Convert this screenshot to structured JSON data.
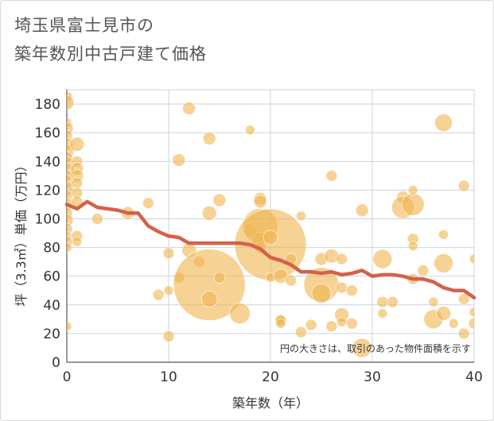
{
  "chart_data": {
    "type": "scatter",
    "title_lines": [
      "埼玉県富士見市の",
      "築年数別中古戸建て価格"
    ],
    "xlabel": "築年数（年）",
    "ylabel": "坪（3.3㎡）単価（万円）",
    "xlim": [
      0,
      40
    ],
    "ylim": [
      0,
      190
    ],
    "x_ticks": [
      0,
      10,
      20,
      30,
      40
    ],
    "y_ticks": [
      0,
      20,
      40,
      60,
      80,
      100,
      120,
      140,
      160,
      180
    ],
    "grid": true,
    "note": "円の大きさは、取引のあった物件面積を示す",
    "colors": {
      "bubble": "#f0b44e",
      "line": "#d4614a",
      "grid": "#c8d4dc"
    },
    "bubbles": [
      {
        "x": 0,
        "y": 185,
        "r": 7
      },
      {
        "x": 0,
        "y": 181,
        "r": 9
      },
      {
        "x": 0,
        "y": 167,
        "r": 6
      },
      {
        "x": 0,
        "y": 163,
        "r": 8
      },
      {
        "x": 0,
        "y": 158,
        "r": 7
      },
      {
        "x": 0,
        "y": 152,
        "r": 8
      },
      {
        "x": 0,
        "y": 147,
        "r": 9
      },
      {
        "x": 0,
        "y": 143,
        "r": 7
      },
      {
        "x": 0,
        "y": 139,
        "r": 8
      },
      {
        "x": 0,
        "y": 134,
        "r": 9
      },
      {
        "x": 0,
        "y": 130,
        "r": 7
      },
      {
        "x": 0,
        "y": 126,
        "r": 8
      },
      {
        "x": 0,
        "y": 121,
        "r": 9
      },
      {
        "x": 0,
        "y": 116,
        "r": 7
      },
      {
        "x": 0,
        "y": 110,
        "r": 8
      },
      {
        "x": 0,
        "y": 104,
        "r": 7
      },
      {
        "x": 0,
        "y": 99,
        "r": 8
      },
      {
        "x": 0,
        "y": 93,
        "r": 7
      },
      {
        "x": 0,
        "y": 88,
        "r": 6
      },
      {
        "x": 0,
        "y": 84,
        "r": 7
      },
      {
        "x": 0,
        "y": 80,
        "r": 6
      },
      {
        "x": 0,
        "y": 25,
        "r": 6
      },
      {
        "x": 1,
        "y": 152,
        "r": 9
      },
      {
        "x": 1,
        "y": 140,
        "r": 7
      },
      {
        "x": 1,
        "y": 135,
        "r": 8
      },
      {
        "x": 1,
        "y": 130,
        "r": 8
      },
      {
        "x": 1,
        "y": 125,
        "r": 7
      },
      {
        "x": 1,
        "y": 118,
        "r": 7
      },
      {
        "x": 1,
        "y": 112,
        "r": 7
      },
      {
        "x": 1,
        "y": 88,
        "r": 7
      },
      {
        "x": 1,
        "y": 84,
        "r": 6
      },
      {
        "x": 3,
        "y": 100,
        "r": 7
      },
      {
        "x": 6,
        "y": 104,
        "r": 8
      },
      {
        "x": 8,
        "y": 111,
        "r": 7
      },
      {
        "x": 9,
        "y": 47,
        "r": 7
      },
      {
        "x": 10,
        "y": 50,
        "r": 6
      },
      {
        "x": 10,
        "y": 76,
        "r": 7
      },
      {
        "x": 10,
        "y": 18,
        "r": 7
      },
      {
        "x": 11,
        "y": 141,
        "r": 8
      },
      {
        "x": 11,
        "y": 59,
        "r": 7
      },
      {
        "x": 12,
        "y": 177,
        "r": 8
      },
      {
        "x": 12,
        "y": 78,
        "r": 9
      },
      {
        "x": 13,
        "y": 70,
        "r": 7
      },
      {
        "x": 14,
        "y": 156,
        "r": 8
      },
      {
        "x": 14,
        "y": 104,
        "r": 9
      },
      {
        "x": 14,
        "y": 54,
        "r": 45
      },
      {
        "x": 14,
        "y": 44,
        "r": 10
      },
      {
        "x": 15,
        "y": 113,
        "r": 8
      },
      {
        "x": 15,
        "y": 59,
        "r": 7
      },
      {
        "x": 17,
        "y": 34,
        "r": 13
      },
      {
        "x": 18,
        "y": 162,
        "r": 6
      },
      {
        "x": 18,
        "y": 92,
        "r": 8
      },
      {
        "x": 19,
        "y": 114,
        "r": 8
      },
      {
        "x": 19,
        "y": 112,
        "r": 8
      },
      {
        "x": 19,
        "y": 95,
        "r": 22
      },
      {
        "x": 19,
        "y": 85,
        "r": 10
      },
      {
        "x": 19,
        "y": 80,
        "r": 7
      },
      {
        "x": 20,
        "y": 82,
        "r": 45
      },
      {
        "x": 20,
        "y": 87,
        "r": 9
      },
      {
        "x": 20,
        "y": 59,
        "r": 6
      },
      {
        "x": 21,
        "y": 60,
        "r": 9
      },
      {
        "x": 21,
        "y": 30,
        "r": 6
      },
      {
        "x": 21,
        "y": 29,
        "r": 7
      },
      {
        "x": 21,
        "y": 27,
        "r": 6
      },
      {
        "x": 22,
        "y": 72,
        "r": 7
      },
      {
        "x": 22,
        "y": 57,
        "r": 7
      },
      {
        "x": 23,
        "y": 102,
        "r": 6
      },
      {
        "x": 23,
        "y": 21,
        "r": 7
      },
      {
        "x": 24,
        "y": 26,
        "r": 7
      },
      {
        "x": 25,
        "y": 72,
        "r": 8
      },
      {
        "x": 25,
        "y": 54,
        "r": 22
      },
      {
        "x": 25,
        "y": 48,
        "r": 12
      },
      {
        "x": 26,
        "y": 130,
        "r": 7
      },
      {
        "x": 26,
        "y": 74,
        "r": 9
      },
      {
        "x": 26,
        "y": 25,
        "r": 7
      },
      {
        "x": 27,
        "y": 72,
        "r": 7
      },
      {
        "x": 27,
        "y": 52,
        "r": 7
      },
      {
        "x": 27,
        "y": 33,
        "r": 9
      },
      {
        "x": 27,
        "y": 28,
        "r": 6
      },
      {
        "x": 28,
        "y": 50,
        "r": 7
      },
      {
        "x": 28,
        "y": 27,
        "r": 7
      },
      {
        "x": 29,
        "y": 106,
        "r": 8
      },
      {
        "x": 29,
        "y": 10,
        "r": 12
      },
      {
        "x": 31,
        "y": 72,
        "r": 12
      },
      {
        "x": 31,
        "y": 42,
        "r": 7
      },
      {
        "x": 31,
        "y": 34,
        "r": 6
      },
      {
        "x": 32,
        "y": 42,
        "r": 7
      },
      {
        "x": 33,
        "y": 115,
        "r": 8
      },
      {
        "x": 33,
        "y": 108,
        "r": 14
      },
      {
        "x": 34,
        "y": 110,
        "r": 14
      },
      {
        "x": 34,
        "y": 120,
        "r": 6
      },
      {
        "x": 34,
        "y": 86,
        "r": 7
      },
      {
        "x": 34,
        "y": 81,
        "r": 6
      },
      {
        "x": 34,
        "y": 58,
        "r": 7
      },
      {
        "x": 35,
        "y": 64,
        "r": 7
      },
      {
        "x": 36,
        "y": 30,
        "r": 12
      },
      {
        "x": 36,
        "y": 42,
        "r": 6
      },
      {
        "x": 37,
        "y": 167,
        "r": 11
      },
      {
        "x": 37,
        "y": 89,
        "r": 6
      },
      {
        "x": 37,
        "y": 69,
        "r": 12
      },
      {
        "x": 37,
        "y": 34,
        "r": 9
      },
      {
        "x": 38,
        "y": 27,
        "r": 6
      },
      {
        "x": 39,
        "y": 123,
        "r": 7
      },
      {
        "x": 39,
        "y": 44,
        "r": 7
      },
      {
        "x": 39,
        "y": 20,
        "r": 7
      },
      {
        "x": 40,
        "y": 72,
        "r": 6
      },
      {
        "x": 40,
        "y": 35,
        "r": 6
      },
      {
        "x": 40,
        "y": 27,
        "r": 7
      }
    ],
    "trend": {
      "x": [
        0,
        1,
        2,
        3,
        4,
        5,
        6,
        7,
        8,
        9,
        10,
        11,
        12,
        13,
        14,
        15,
        16,
        17,
        18,
        19,
        20,
        21,
        22,
        23,
        24,
        25,
        26,
        27,
        28,
        29,
        30,
        31,
        32,
        33,
        34,
        35,
        36,
        37,
        38,
        39,
        40
      ],
      "y": [
        110,
        107,
        112,
        108,
        107,
        106,
        104,
        104,
        95,
        91,
        88,
        87,
        83,
        83,
        83,
        83,
        83,
        83,
        82,
        79,
        73,
        71,
        68,
        63,
        63,
        62,
        63,
        61,
        62,
        64,
        60,
        61,
        61,
        60,
        58,
        58,
        56,
        52,
        50,
        50,
        45
      ]
    }
  }
}
